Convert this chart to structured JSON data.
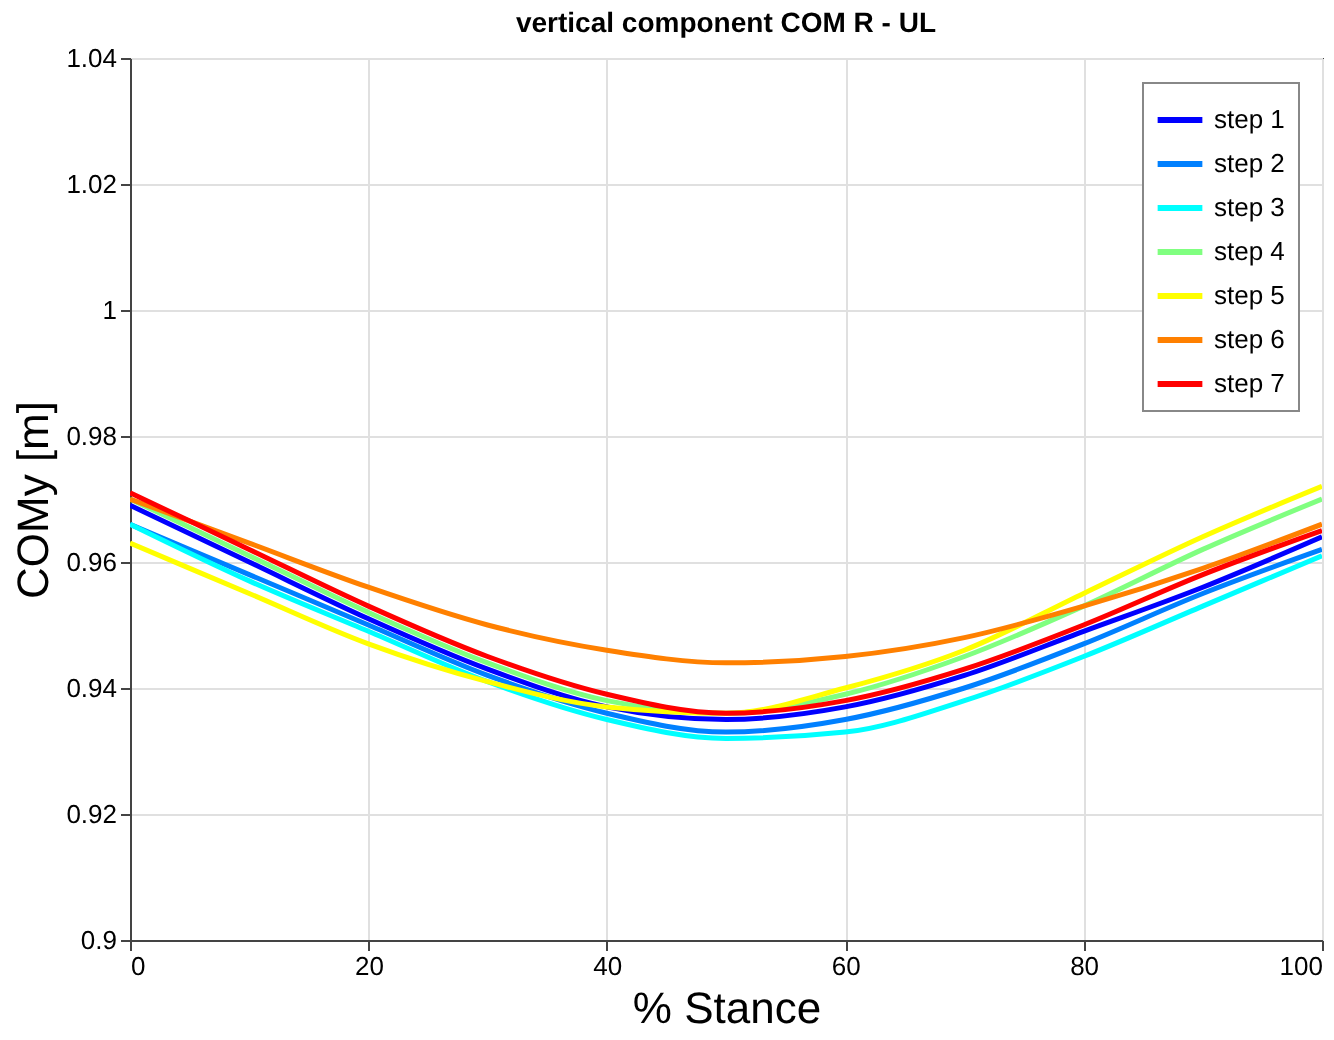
{
  "chart_data": {
    "type": "line",
    "title": "vertical component COM R - UL",
    "xlabel": "% Stance",
    "ylabel": "COMy [m]",
    "x": [
      0,
      10,
      20,
      30,
      40,
      50,
      60,
      70,
      80,
      90,
      100
    ],
    "series": [
      {
        "name": "step 1",
        "color": "#0000ff",
        "values": [
          0.969,
          0.96,
          0.951,
          0.943,
          0.937,
          0.935,
          0.937,
          0.942,
          0.949,
          0.956,
          0.964
        ]
      },
      {
        "name": "step 2",
        "color": "#0080ff",
        "values": [
          0.966,
          0.958,
          0.95,
          0.942,
          0.936,
          0.933,
          0.935,
          0.94,
          0.947,
          0.955,
          0.962
        ]
      },
      {
        "name": "step 3",
        "color": "#00ffff",
        "values": [
          0.966,
          0.957,
          0.949,
          0.941,
          0.935,
          0.932,
          0.933,
          0.938,
          0.945,
          0.953,
          0.961
        ]
      },
      {
        "name": "step 4",
        "color": "#80ff80",
        "values": [
          0.97,
          0.961,
          0.952,
          0.944,
          0.938,
          0.936,
          0.939,
          0.945,
          0.953,
          0.962,
          0.97
        ]
      },
      {
        "name": "step 5",
        "color": "#ffff00",
        "values": [
          0.963,
          0.955,
          0.947,
          0.941,
          0.937,
          0.936,
          0.94,
          0.946,
          0.955,
          0.964,
          0.972
        ]
      },
      {
        "name": "step 6",
        "color": "#ff8000",
        "values": [
          0.97,
          0.963,
          0.956,
          0.95,
          0.946,
          0.944,
          0.945,
          0.948,
          0.953,
          0.959,
          0.966
        ]
      },
      {
        "name": "step 7",
        "color": "#ff0000",
        "values": [
          0.971,
          0.962,
          0.953,
          0.945,
          0.939,
          0.936,
          0.938,
          0.943,
          0.95,
          0.958,
          0.965
        ]
      }
    ],
    "xlim": [
      0,
      100
    ],
    "xticks": [
      0,
      20,
      40,
      60,
      80,
      100
    ],
    "ylim": [
      0.9,
      1.04
    ],
    "yticks": [
      0.9,
      0.92,
      0.94,
      0.96,
      0.98,
      1,
      1.02,
      1.04
    ],
    "grid": true,
    "legend": "top right",
    "line_style": "solid",
    "marker": "none"
  }
}
